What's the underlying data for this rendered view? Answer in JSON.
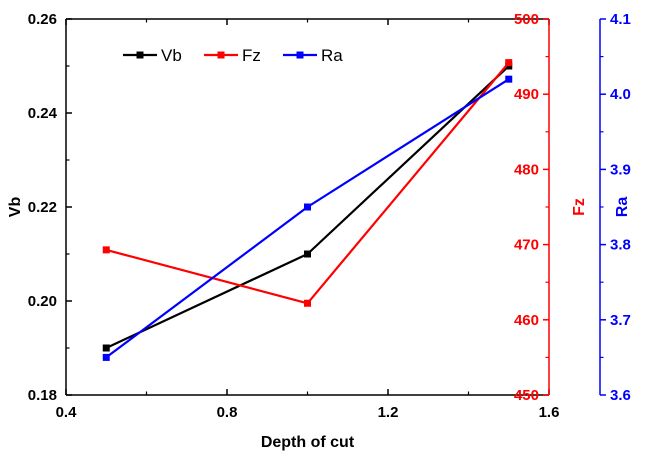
{
  "chart_data": {
    "type": "line",
    "title": "",
    "xlabel": "Depth of cut",
    "x": [
      0.5,
      1.0,
      1.5
    ],
    "xlim": [
      0.4,
      1.6
    ],
    "x_ticks": [
      "0.4",
      "0.8",
      "1.2",
      "1.6"
    ],
    "grid": false,
    "legend_position": "top-left",
    "axes": {
      "left": {
        "label": "Vb",
        "color": "#000000",
        "range": [
          0.18,
          0.26
        ],
        "ticks": [
          "0.18",
          "0.20",
          "0.22",
          "0.24",
          "0.26"
        ]
      },
      "right1": {
        "label": "Fz",
        "color": "#ff0000",
        "range": [
          450,
          500
        ],
        "ticks": [
          "450",
          "460",
          "470",
          "480",
          "490",
          "500"
        ]
      },
      "right2": {
        "label": "Ra",
        "color": "#0000ff",
        "range": [
          3.6,
          4.1
        ],
        "ticks": [
          "3.6",
          "3.7",
          "3.8",
          "3.9",
          "4.0",
          "4.1"
        ]
      }
    },
    "series": [
      {
        "name": "Vb",
        "axis": "left",
        "color": "#000000",
        "values": [
          0.19,
          0.21,
          0.25
        ]
      },
      {
        "name": "Fz",
        "axis": "right1",
        "color": "#ff0000",
        "values": [
          469.3,
          462.2,
          494.2
        ]
      },
      {
        "name": "Ra",
        "axis": "right2",
        "color": "#0000ff",
        "values": [
          3.65,
          3.85,
          4.02
        ]
      }
    ]
  }
}
